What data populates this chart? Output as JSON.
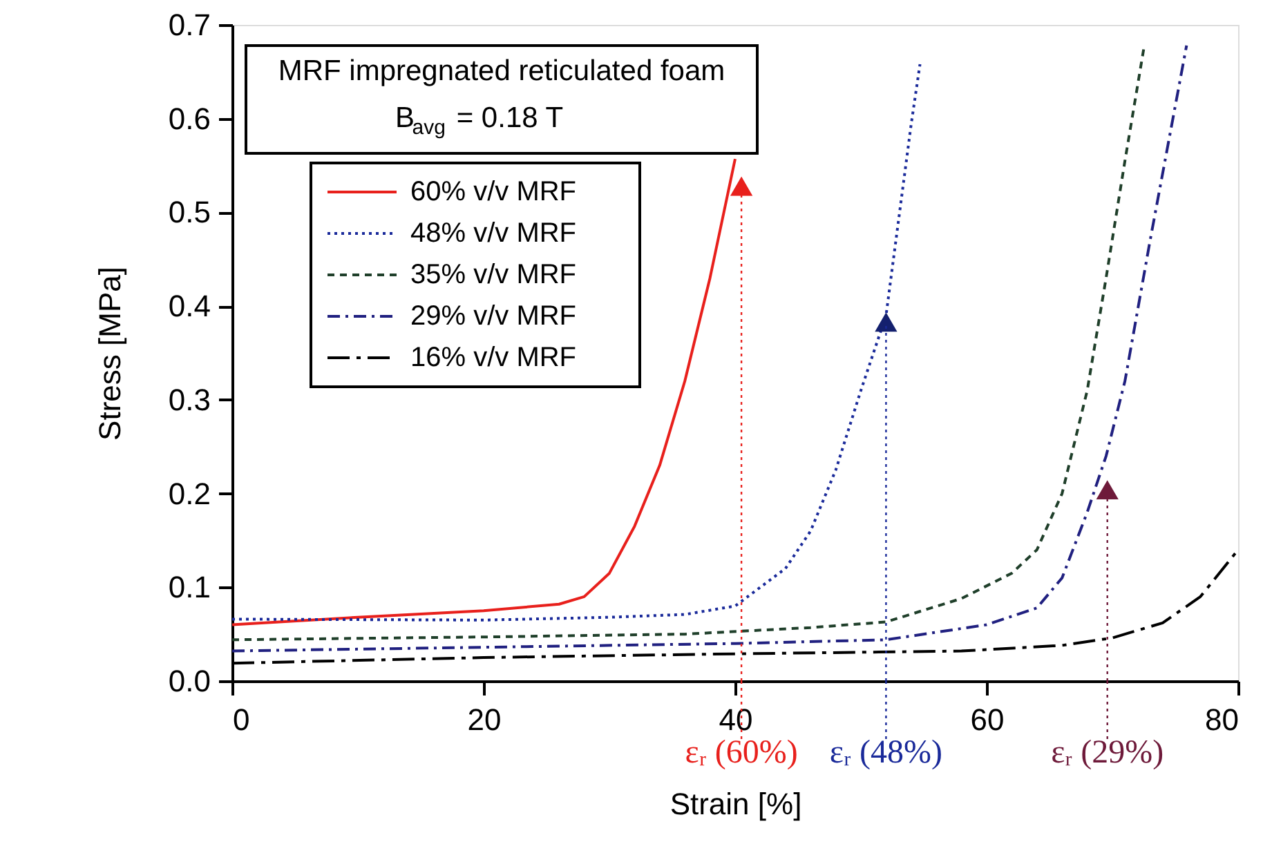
{
  "chart_data": {
    "type": "line",
    "xlabel": "Strain    [%]",
    "ylabel": "Stress    [MPa]",
    "xlim": [
      0,
      80
    ],
    "xticks": [
      0,
      20,
      40,
      60,
      80
    ],
    "ylim": [
      0,
      0.7
    ],
    "yticks": [
      {
        "value": 0,
        "label": "0.0"
      },
      {
        "value": 0.1,
        "label": "0.1"
      },
      {
        "value": 0.2,
        "label": "0.2"
      },
      {
        "value": 0.3,
        "label": "0.3"
      },
      {
        "value": 0.4,
        "label": "0.4"
      },
      {
        "value": 0.5,
        "label": "0.5"
      },
      {
        "value": 0.6,
        "label": "0.6"
      },
      {
        "value": 0.7,
        "label": "0.7"
      }
    ],
    "grid": false,
    "legend": "top left",
    "annotations": [
      "MRF impregnated reticulated foam",
      "B$_{avg}$ = 0.18 T"
    ],
    "series": [
      {
        "name": "60% v/v MRF",
        "color": "#e8201c",
        "line_style": "solid",
        "x": [
          0,
          10,
          20,
          26,
          28,
          30,
          32,
          34,
          36,
          38,
          40
        ],
        "values": [
          0.06,
          0.068,
          0.075,
          0.082,
          0.09,
          0.115,
          0.165,
          0.23,
          0.32,
          0.43,
          0.557
        ]
      },
      {
        "name": "48% v/v MRF",
        "color": "#1a2a9a",
        "line_style": "dotted",
        "x": [
          0,
          20,
          30,
          36,
          40,
          44,
          46,
          48,
          50,
          52,
          54,
          54.7
        ],
        "values": [
          0.066,
          0.065,
          0.068,
          0.071,
          0.08,
          0.12,
          0.16,
          0.225,
          0.31,
          0.39,
          0.594,
          0.658
        ]
      },
      {
        "name": "35% v/v MRF",
        "color": "#1f3f2a",
        "line_style": "dashed",
        "x": [
          0,
          20,
          36,
          46,
          52,
          58,
          62,
          64,
          66,
          68,
          69.5,
          71,
          72.5
        ],
        "values": [
          0.044,
          0.047,
          0.05,
          0.057,
          0.063,
          0.088,
          0.115,
          0.14,
          0.2,
          0.31,
          0.43,
          0.555,
          0.675
        ]
      },
      {
        "name": "29% v/v MRF",
        "color": "#202080",
        "line_style": "dashdot",
        "x": [
          0,
          20,
          40,
          52,
          60,
          64,
          66,
          68,
          69.5,
          71,
          73,
          75.9
        ],
        "values": [
          0.032,
          0.036,
          0.04,
          0.044,
          0.06,
          0.078,
          0.11,
          0.18,
          0.24,
          0.32,
          0.47,
          0.678
        ]
      },
      {
        "name": "16% v/v MRF",
        "color": "#000000",
        "line_style": "longdashdot",
        "x": [
          0,
          20,
          40,
          58,
          66,
          70,
          74,
          77,
          80
        ],
        "values": [
          0.019,
          0.025,
          0.029,
          0.032,
          0.038,
          0.046,
          0.062,
          0.09,
          0.14
        ]
      },
      {
        "type": "scatter",
        "marker": "triangle",
        "x": [
          40.5,
          52,
          69.6
        ],
        "values": [
          0.528,
          0.383,
          0.204
        ],
        "colors": [
          "#e8201c",
          "#14206e",
          "#6e1a3a"
        ]
      }
    ],
    "ref_lines": [
      {
        "axis": "x",
        "value": 40.5,
        "label": "εᵣ (60%)",
        "color": "#e8201c",
        "line_style": "dotted"
      },
      {
        "axis": "x",
        "value": 52,
        "label": "εᵣ (48%)",
        "color": "#1a2a9a",
        "line_style": "dotted"
      },
      {
        "axis": "x",
        "value": 69.6,
        "label": "εᵣ (29%)",
        "color": "#6e1a3a",
        "line_style": "dotted"
      }
    ]
  }
}
